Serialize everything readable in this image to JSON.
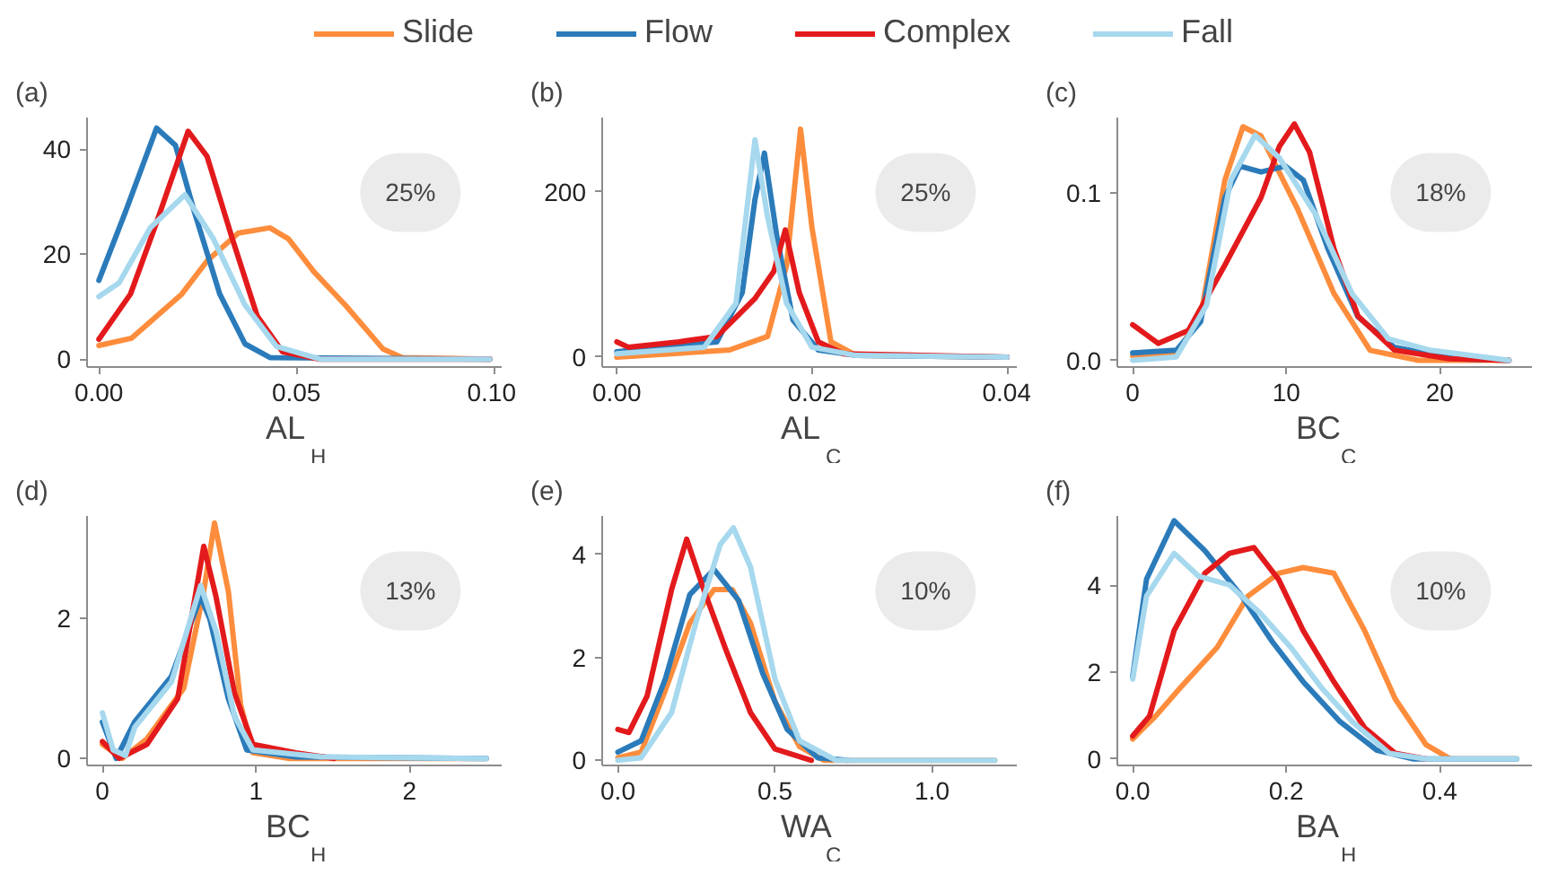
{
  "chart_data": [
    {
      "type": "line",
      "title": "(a)",
      "xlabel": "AL$_{H}$",
      "annotations": [
        "25%"
      ],
      "legend": "top",
      "xlim": [
        -0.003,
        0.102
      ],
      "ylim": [
        -1.5,
        46
      ],
      "xticks": [
        {
          "value": 0,
          "label": "0.00"
        },
        0.05,
        {
          "value": 0.1,
          "label": "0.10"
        }
      ],
      "yticks": [
        0,
        20,
        40
      ],
      "series": [
        {
          "name": "Slide",
          "color": "#fd8d3c",
          "x": [
            0,
            0.0083,
            0.021,
            0.0274,
            0.0353,
            0.0433,
            0.048,
            0.0545,
            0.0624,
            0.072,
            0.0768,
            0.099
          ],
          "values": [
            2.6,
            4,
            12.4,
            18.7,
            24,
            25,
            22.9,
            16.6,
            10.3,
            1.9,
            0.3,
            0
          ]
        },
        {
          "name": "Flow",
          "color": "#2b7bba",
          "x": [
            0,
            0.0067,
            0.0146,
            0.0194,
            0.0242,
            0.0306,
            0.037,
            0.0433,
            0.099
          ],
          "values": [
            15,
            28,
            44,
            40.7,
            28,
            12.4,
            2.9,
            0.3,
            0
          ]
        },
        {
          "name": "Complex",
          "color": "#e31a1c",
          "x": [
            0,
            0.008,
            0.0146,
            0.0226,
            0.0274,
            0.0338,
            0.0401,
            0.0465,
            0.056,
            0.099
          ],
          "values": [
            3.8,
            12.4,
            26,
            43.4,
            38.6,
            22.9,
            8.2,
            1.4,
            0,
            0
          ]
        },
        {
          "name": "Fall",
          "color": "#a6d8ee",
          "x": [
            0,
            0.0051,
            0.013,
            0.0218,
            0.029,
            0.037,
            0.045,
            0.056,
            0.099
          ],
          "values": [
            11.9,
            14.5,
            25,
            31.3,
            22.9,
            10.3,
            2.4,
            0,
            0
          ]
        }
      ]
    },
    {
      "type": "line",
      "title": "(b)",
      "xlabel": "AL$_{C}$",
      "annotations": [
        "25%"
      ],
      "xlim": [
        -0.0015,
        0.041
      ],
      "ylim": [
        -12,
        290
      ],
      "xticks": [
        {
          "value": 0,
          "label": "0.00"
        },
        0.02,
        0.04
      ],
      "yticks": [
        0,
        200
      ],
      "series": [
        {
          "color": "#fd8d3c",
          "x": [
            0,
            0.01156,
            0.01545,
            0.0174,
            0.01883,
            0.02,
            0.02195,
            0.02455,
            0.04
          ],
          "values": [
            0,
            8.6,
            25,
            111,
            276,
            157,
            18.5,
            2,
            0
          ]
        },
        {
          "color": "#2b7bba",
          "x": [
            0,
            0.01026,
            0.01286,
            0.01416,
            0.01513,
            0.01643,
            0.01805,
            0.02065,
            0.02455,
            0.04
          ],
          "values": [
            6.6,
            18.5,
            78,
            191,
            247,
            144,
            45,
            8.6,
            2,
            0
          ]
        },
        {
          "color": "#e31a1c",
          "x": [
            0,
            0.00117,
            0.00636,
            0.01026,
            0.01416,
            0.0161,
            0.01727,
            0.0187,
            0.02065,
            0.02325,
            0.04
          ],
          "values": [
            18.5,
            12,
            18.5,
            25,
            71,
            104,
            154,
            78,
            18.5,
            4,
            0
          ]
        },
        {
          "color": "#a6d8ee",
          "x": [
            0,
            0.00896,
            0.01221,
            0.01416,
            0.01545,
            0.0174,
            0.02,
            0.02455,
            0.04
          ],
          "values": [
            4,
            12,
            65,
            263,
            170,
            65,
            12,
            2,
            0
          ]
        }
      ]
    },
    {
      "type": "line",
      "title": "(c)",
      "xlabel": "BC$_{C}$",
      "annotations": [
        "18%"
      ],
      "xlim": [
        -1,
        26
      ],
      "ylim": [
        -0.004,
        0.145
      ],
      "xticks": [
        0,
        10,
        20
      ],
      "yticks": [
        {
          "value": 0,
          "label": "0.0"
        },
        0.1
      ],
      "series": [
        {
          "color": "#fd8d3c",
          "x": [
            0,
            2.84,
            4.42,
            6.0,
            7.18,
            8.36,
            10.73,
            13.1,
            15.46,
            18.6,
            24.5
          ],
          "values": [
            0.0027,
            0.0044,
            0.026,
            0.1075,
            0.1395,
            0.134,
            0.0905,
            0.04,
            0.006,
            0,
            0
          ]
        },
        {
          "color": "#2b7bba",
          "x": [
            0,
            2.84,
            4.42,
            6.0,
            6.98,
            8.36,
            9.94,
            11.12,
            12.7,
            14.67,
            17.04,
            21,
            24.5
          ],
          "values": [
            0.0044,
            0.006,
            0.023,
            0.097,
            0.116,
            0.1125,
            0.116,
            0.1075,
            0.067,
            0.026,
            0.0078,
            0.001,
            0
          ]
        },
        {
          "color": "#e31a1c",
          "x": [
            0,
            1.66,
            3.63,
            6,
            8.36,
            9.55,
            10.53,
            11.52,
            13.1,
            14.67,
            17.04,
            20.6,
            24.5
          ],
          "values": [
            0.0213,
            0.0101,
            0.0179,
            0.0568,
            0.0973,
            0.1277,
            0.1412,
            0.1243,
            0.0669,
            0.0264,
            0.0061,
            0.001,
            0
          ]
        },
        {
          "color": "#a6d8ee",
          "x": [
            0,
            2.84,
            4.81,
            6.39,
            7.97,
            9.55,
            11.91,
            14.28,
            16.65,
            19.4,
            24.5
          ],
          "values": [
            0,
            0.002,
            0.033,
            0.1075,
            0.1345,
            0.1209,
            0.0872,
            0.0399,
            0.0128,
            0.006,
            0
          ]
        }
      ]
    },
    {
      "type": "line",
      "title": "(d)",
      "xlabel": "BC$_{H}$",
      "annotations": [
        "13%"
      ],
      "xlim": [
        -0.1,
        2.6
      ],
      "ylim": [
        -0.1,
        3.45
      ],
      "xticks": [
        0,
        1,
        2
      ],
      "yticks": [
        0,
        2
      ],
      "series": [
        {
          "color": "#fd8d3c",
          "x": [
            0,
            0.13,
            0.29,
            0.53,
            0.66,
            0.73,
            0.82,
            0.9,
            0.98,
            1.22,
            2.5
          ],
          "values": [
            0.2,
            0,
            0.28,
            1.0,
            2.38,
            3.35,
            2.38,
            0.77,
            0.08,
            0,
            0
          ]
        },
        {
          "color": "#2b7bba",
          "x": [
            0,
            0.09,
            0.21,
            0.45,
            0.64,
            0.7,
            0.82,
            0.94,
            1.26,
            2.5
          ],
          "values": [
            0.52,
            0,
            0.52,
            1.17,
            2.3,
            1.98,
            0.85,
            0.12,
            0.02,
            0
          ]
        },
        {
          "color": "#e31a1c",
          "x": [
            0,
            0.11,
            0.29,
            0.49,
            0.66,
            0.74,
            0.86,
            0.98,
            1.26,
            1.51
          ],
          "values": [
            0.24,
            0,
            0.2,
            0.85,
            3.02,
            2.3,
            0.93,
            0.2,
            0.08,
            0
          ]
        },
        {
          "color": "#a6d8ee",
          "x": [
            0,
            0.07,
            0.15,
            0.21,
            0.45,
            0.64,
            0.74,
            0.86,
            0.98,
            1.43,
            2.5
          ],
          "values": [
            0.65,
            0.12,
            0.04,
            0.44,
            1.09,
            2.46,
            1.81,
            0.6,
            0.12,
            0.02,
            0
          ]
        }
      ]
    },
    {
      "type": "line",
      "title": "(e)",
      "xlabel": "WA$_{C}$",
      "annotations": [
        "10%"
      ],
      "xlim": [
        -0.05,
        1.27
      ],
      "ylim": [
        -0.1,
        4.75
      ],
      "xticks": [
        {
          "value": 0,
          "label": "0.0"
        },
        0.5,
        {
          "value": 1,
          "label": "1.0"
        }
      ],
      "yticks": [
        0,
        2,
        4
      ],
      "series": [
        {
          "color": "#fd8d3c",
          "x": [
            0,
            0.074,
            0.151,
            0.229,
            0.306,
            0.364,
            0.422,
            0.5,
            0.578,
            0.655,
            1.2
          ],
          "values": [
            0.05,
            0.16,
            1.36,
            2.67,
            3.32,
            3.32,
            2.67,
            1.14,
            0.27,
            0,
            0
          ]
        },
        {
          "color": "#2b7bba",
          "x": [
            0,
            0.074,
            0.151,
            0.229,
            0.306,
            0.384,
            0.461,
            0.539,
            0.636,
            0.733
          ],
          "values": [
            0.16,
            0.38,
            1.58,
            3.22,
            3.71,
            3.11,
            1.69,
            0.6,
            0.05,
            0
          ]
        },
        {
          "color": "#e31a1c",
          "x": [
            0,
            0.035,
            0.093,
            0.171,
            0.219,
            0.267,
            0.345,
            0.422,
            0.5,
            0.616
          ],
          "values": [
            0.6,
            0.54,
            1.25,
            3.32,
            4.3,
            3.43,
            2.13,
            0.93,
            0.22,
            0
          ]
        },
        {
          "color": "#a6d8ee",
          "x": [
            0,
            0.074,
            0.171,
            0.248,
            0.326,
            0.368,
            0.422,
            0.5,
            0.578,
            0.694,
            1.2
          ],
          "values": [
            0,
            0.05,
            0.93,
            2.67,
            4.2,
            4.52,
            3.76,
            1.58,
            0.38,
            0,
            0
          ]
        }
      ]
    },
    {
      "type": "line",
      "title": "(f)",
      "xlabel": "BA$_{H}$",
      "annotations": [
        "10%"
      ],
      "xlim": [
        -0.02,
        0.52
      ],
      "ylim": [
        -0.15,
        5.6
      ],
      "xticks": [
        {
          "value": 0,
          "label": "0.0"
        },
        0.2,
        0.4
      ],
      "yticks": [
        0,
        2,
        4
      ],
      "series": [
        {
          "color": "#fd8d3c",
          "x": [
            0,
            0.03,
            0.062,
            0.11,
            0.15,
            0.19,
            0.222,
            0.262,
            0.302,
            0.342,
            0.382,
            0.414,
            0.5
          ],
          "values": [
            0.46,
            0.99,
            1.64,
            2.57,
            3.75,
            4.28,
            4.41,
            4.28,
            2.96,
            1.38,
            0.33,
            0,
            0
          ]
        },
        {
          "color": "#2b7bba",
          "x": [
            0,
            0.018,
            0.054,
            0.094,
            0.142,
            0.182,
            0.222,
            0.27,
            0.318,
            0.366,
            0.5
          ],
          "values": [
            1.9,
            4.14,
            5.49,
            4.8,
            3.75,
            2.7,
            1.78,
            0.86,
            0.2,
            0,
            0
          ]
        },
        {
          "color": "#e31a1c",
          "x": [
            0,
            0.022,
            0.054,
            0.094,
            0.126,
            0.158,
            0.19,
            0.222,
            0.262,
            0.302,
            0.342,
            0.382
          ],
          "values": [
            0.53,
            0.99,
            2.96,
            4.28,
            4.74,
            4.87,
            4.14,
            2.96,
            1.78,
            0.72,
            0.13,
            0
          ]
        },
        {
          "color": "#a6d8ee",
          "x": [
            0,
            0.018,
            0.054,
            0.086,
            0.126,
            0.166,
            0.206,
            0.246,
            0.286,
            0.334,
            0.382,
            0.5
          ],
          "values": [
            1.84,
            3.75,
            4.74,
            4.21,
            4.01,
            3.36,
            2.57,
            1.64,
            0.86,
            0.13,
            0,
            0
          ]
        }
      ]
    }
  ]
}
